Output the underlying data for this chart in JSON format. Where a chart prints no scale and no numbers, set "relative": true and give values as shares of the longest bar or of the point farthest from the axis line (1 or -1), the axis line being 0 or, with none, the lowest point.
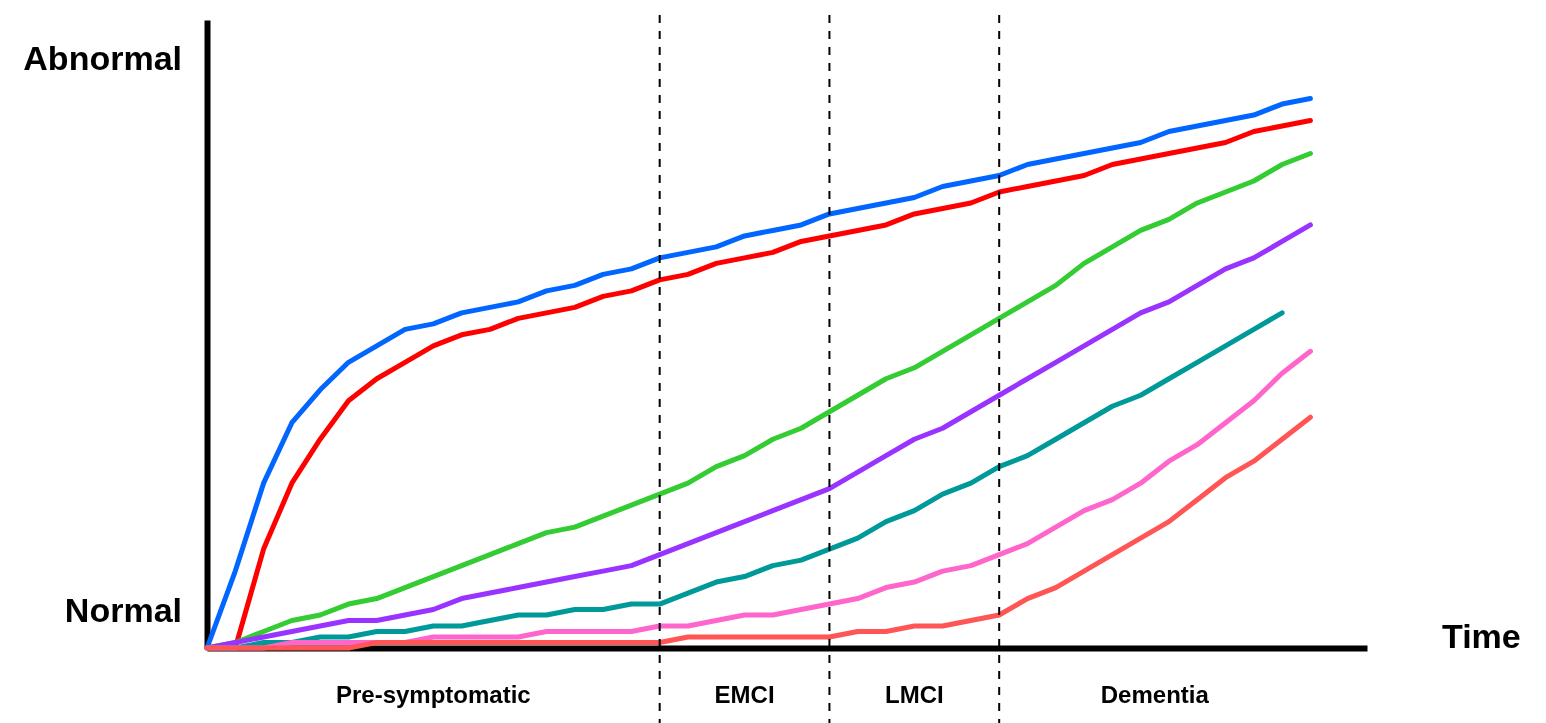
{
  "chart_data": {
    "type": "line",
    "relative": true,
    "xlabel": "Time",
    "tick_labels": false,
    "grid": "x",
    "line_style": "solid",
    "marker": "none",
    "categories": [
      null,
      null,
      null,
      null,
      null,
      null,
      null,
      null,
      null,
      null,
      null,
      null,
      null,
      null,
      null,
      null,
      null,
      null,
      null,
      null,
      null,
      null,
      null,
      null,
      null,
      null,
      null,
      null,
      null,
      null,
      null,
      null,
      null,
      null,
      null,
      null,
      null,
      null,
      null,
      null,
      null
    ],
    "annotations": [
      "Abnormal",
      "Normal",
      "Pre-symptomatic",
      "EMCI",
      "LMCI",
      "Dementia"
    ],
    "series": [
      {
        "color": "#0066ff",
        "values": [
          0,
          0.14,
          0.3,
          0.41,
          0.47,
          0.52,
          0.55,
          0.58,
          0.59,
          0.61,
          0.62,
          0.63,
          0.65,
          0.66,
          0.68,
          0.69,
          0.71,
          0.72,
          0.73,
          0.75,
          0.76,
          0.77,
          0.79,
          0.8,
          0.81,
          0.82,
          0.84,
          0.85,
          0.86,
          0.88,
          0.89,
          0.9,
          0.91,
          0.92,
          0.94,
          0.95,
          0.96,
          0.97,
          0.99,
          1,
          null
        ]
      },
      {
        "color": "#ff0000",
        "values": [
          null,
          0,
          0.18,
          0.3,
          0.38,
          0.45,
          0.49,
          0.52,
          0.55,
          0.57,
          0.58,
          0.6,
          0.61,
          0.62,
          0.64,
          0.65,
          0.67,
          0.68,
          0.7,
          0.71,
          0.72,
          0.74,
          0.75,
          0.76,
          0.77,
          0.79,
          0.8,
          0.81,
          0.83,
          0.84,
          0.85,
          0.86,
          0.88,
          0.89,
          0.9,
          0.91,
          0.92,
          0.94,
          0.95,
          0.96,
          null
        ]
      },
      {
        "color": "#33cc33",
        "values": [
          0,
          0.01,
          0.03,
          0.05,
          0.06,
          0.08,
          0.09,
          0.11,
          0.13,
          0.15,
          0.17,
          0.19,
          0.21,
          0.22,
          0.24,
          0.26,
          0.28,
          0.3,
          0.33,
          0.35,
          0.38,
          0.4,
          0.43,
          0.46,
          0.49,
          0.51,
          0.54,
          0.57,
          0.6,
          0.63,
          0.66,
          0.7,
          0.73,
          0.76,
          0.78,
          0.81,
          0.83,
          0.85,
          0.88,
          0.9,
          null
        ]
      },
      {
        "color": "#9933ff",
        "values": [
          0,
          0.01,
          0.02,
          0.03,
          0.04,
          0.05,
          0.05,
          0.06,
          0.07,
          0.09,
          0.1,
          0.11,
          0.12,
          0.13,
          0.14,
          0.15,
          0.17,
          0.19,
          0.21,
          0.23,
          0.25,
          0.27,
          0.29,
          0.32,
          0.35,
          0.38,
          0.4,
          0.43,
          0.46,
          0.49,
          0.52,
          0.55,
          0.58,
          0.61,
          0.63,
          0.66,
          0.69,
          0.71,
          0.74,
          0.77,
          null
        ]
      },
      {
        "color": "#009999",
        "values": [
          0,
          0,
          0.01,
          0.01,
          0.02,
          0.02,
          0.03,
          0.03,
          0.04,
          0.04,
          0.05,
          0.06,
          0.06,
          0.07,
          0.07,
          0.08,
          0.08,
          0.1,
          0.12,
          0.13,
          0.15,
          0.16,
          0.18,
          0.2,
          0.23,
          0.25,
          0.28,
          0.3,
          0.33,
          0.35,
          0.38,
          0.41,
          0.44,
          0.46,
          0.49,
          0.52,
          0.55,
          0.58,
          0.61,
          null,
          null
        ]
      },
      {
        "color": "#ff66cc",
        "values": [
          0,
          0,
          0,
          0.01,
          0.01,
          0.01,
          0.01,
          0.01,
          0.02,
          0.02,
          0.02,
          0.02,
          0.03,
          0.03,
          0.03,
          0.03,
          0.04,
          0.04,
          0.05,
          0.06,
          0.06,
          0.07,
          0.08,
          0.09,
          0.11,
          0.12,
          0.14,
          0.15,
          0.17,
          0.19,
          0.22,
          0.25,
          0.27,
          0.3,
          0.34,
          0.37,
          0.41,
          0.45,
          0.5,
          0.54,
          null
        ]
      },
      {
        "color": "#ff5555",
        "values": [
          0,
          0,
          0,
          0,
          0,
          0,
          0.01,
          0.01,
          0.01,
          0.01,
          0.01,
          0.01,
          0.01,
          0.01,
          0.01,
          0.01,
          0.01,
          0.02,
          0.02,
          0.02,
          0.02,
          0.02,
          0.02,
          0.03,
          0.03,
          0.04,
          0.04,
          0.05,
          0.06,
          0.09,
          0.11,
          0.14,
          0.17,
          0.2,
          0.23,
          0.27,
          0.31,
          0.34,
          0.38,
          0.42,
          null
        ]
      }
    ]
  }
}
